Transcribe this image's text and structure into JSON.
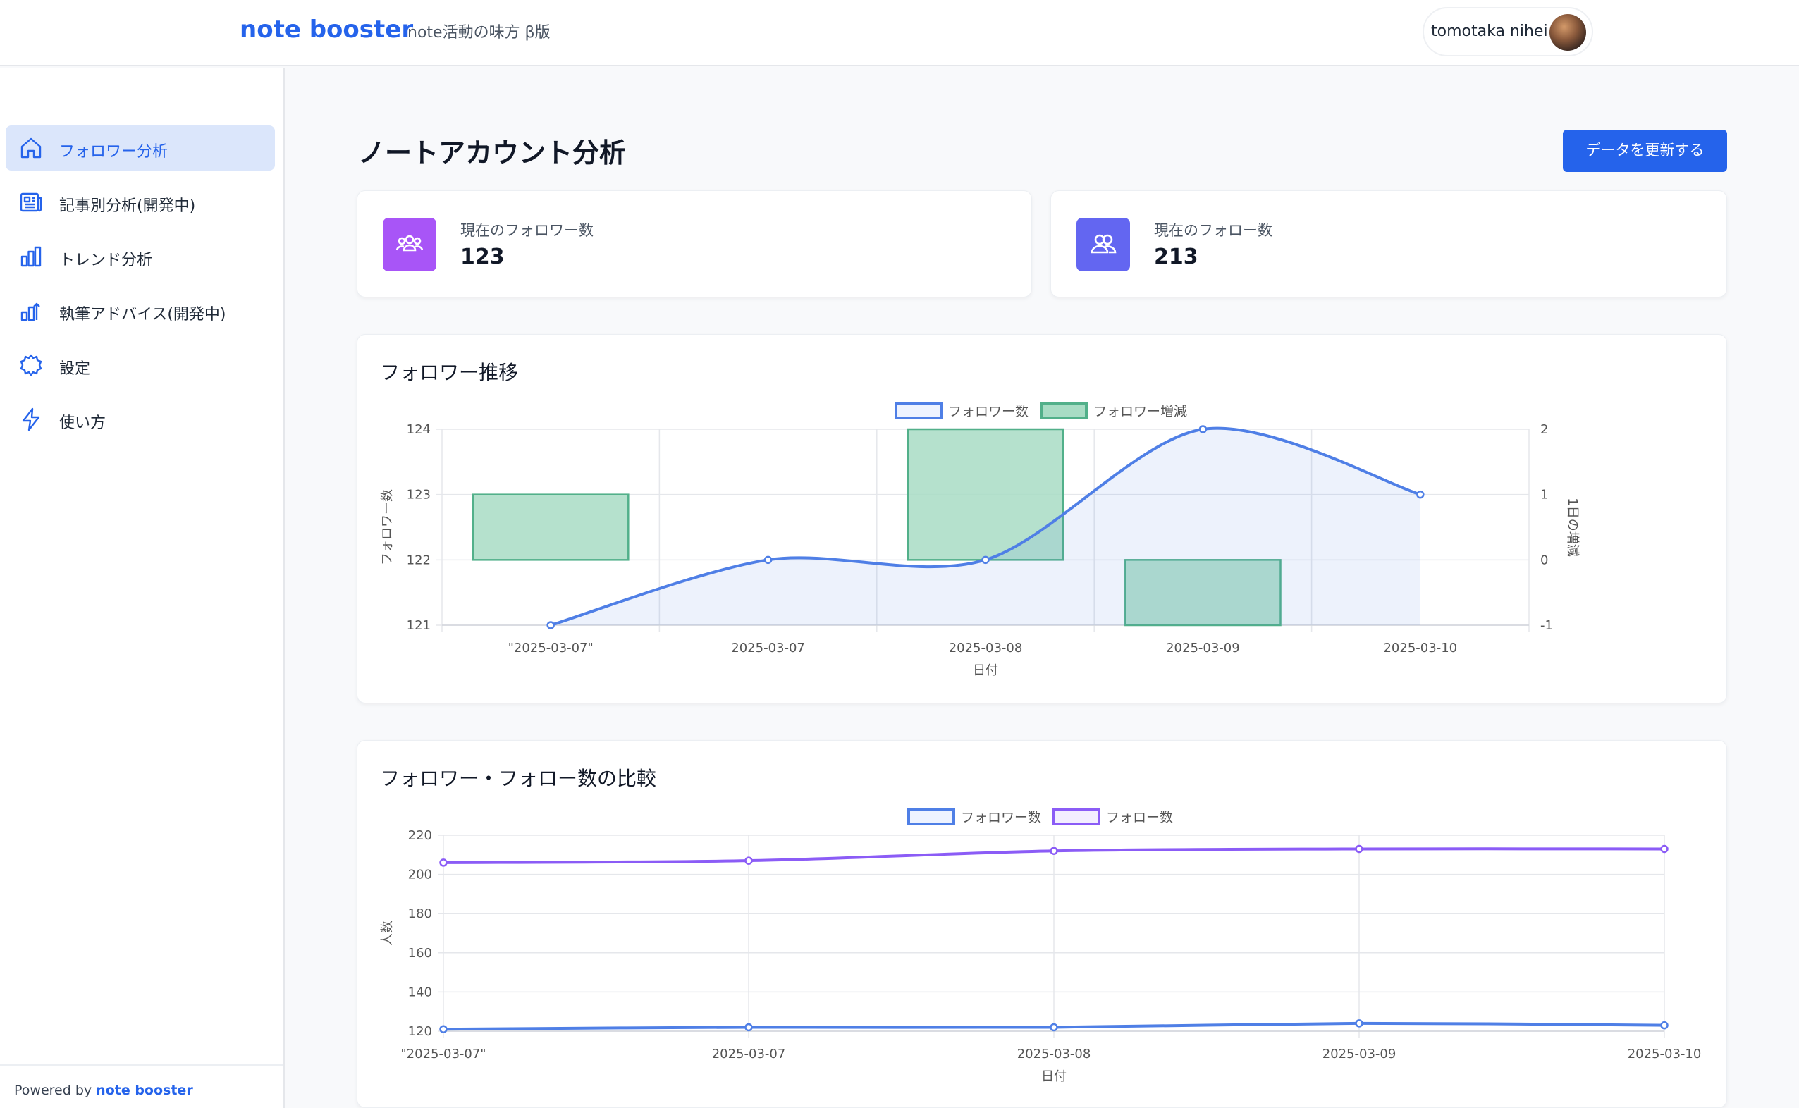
{
  "header": {
    "brand": "note booster",
    "tagline": "note活動の味方  β版",
    "user_name": "tomotaka nihei"
  },
  "sidebar": {
    "items": [
      {
        "label": "フォロワー分析",
        "icon": "home-icon",
        "active": true
      },
      {
        "label": "記事別分析(開発中)",
        "icon": "newspaper-icon",
        "active": false
      },
      {
        "label": "トレンド分析",
        "icon": "bar-chart-icon",
        "active": false
      },
      {
        "label": "執筆アドバイス(開発中)",
        "icon": "chart-advice-icon",
        "active": false
      },
      {
        "label": "設定",
        "icon": "gear-icon",
        "active": false
      },
      {
        "label": "使い方",
        "icon": "lightning-icon",
        "active": false
      }
    ],
    "footer_prefix": "Powered by",
    "footer_link": "note booster"
  },
  "main": {
    "title": "ノートアカウント分析",
    "refresh_label": "データを更新する",
    "stats": [
      {
        "label": "現在のフォロワー数",
        "value": "123",
        "color": "#a855f7",
        "icon": "followers-group-icon"
      },
      {
        "label": "現在のフォロー数",
        "value": "213",
        "color": "#6366f1",
        "icon": "following-users-icon"
      }
    ]
  },
  "colors": {
    "accent": "#2563eb",
    "follower_line": "#4f7fe6",
    "follow_line": "#8b5cf6",
    "bar_fill": "#a8dcc4",
    "bar_stroke": "#52b08a"
  },
  "chart_data": [
    {
      "type": "bar",
      "title": "フォロワー推移",
      "categories": [
        "\"2025-03-07\"",
        "2025-03-07",
        "2025-03-08",
        "2025-03-09",
        "2025-03-10"
      ],
      "xlabel": "日付",
      "ylabel": "フォロワー数",
      "y2label": "1日の増減",
      "ylim": [
        121,
        124
      ],
      "yticks": [
        "121",
        "122",
        "123",
        "124"
      ],
      "y2lim": [
        -1,
        2
      ],
      "y2ticks": [
        "-1",
        "0",
        "1",
        "2"
      ],
      "legend_position": "top",
      "grid": true,
      "series": [
        {
          "name": "フォロワー数",
          "type": "line",
          "axis": "left",
          "values": [
            121,
            122,
            122,
            124,
            123
          ]
        },
        {
          "name": "フォロワー増減",
          "type": "bar",
          "axis": "right",
          "values": [
            1,
            0,
            2,
            -1,
            0
          ]
        }
      ]
    },
    {
      "type": "line",
      "title": "フォロワー・フォロー数の比較",
      "categories": [
        "\"2025-03-07\"",
        "2025-03-07",
        "2025-03-08",
        "2025-03-09",
        "2025-03-10"
      ],
      "xlabel": "日付",
      "ylabel": "人数",
      "ylim": [
        120,
        220
      ],
      "yticks": [
        "120",
        "140",
        "160",
        "180",
        "200",
        "220"
      ],
      "legend_position": "top",
      "grid": true,
      "series": [
        {
          "name": "フォロワー数",
          "values": [
            121,
            122,
            122,
            124,
            123
          ]
        },
        {
          "name": "フォロー数",
          "values": [
            206,
            207,
            212,
            213,
            213
          ]
        }
      ]
    }
  ]
}
